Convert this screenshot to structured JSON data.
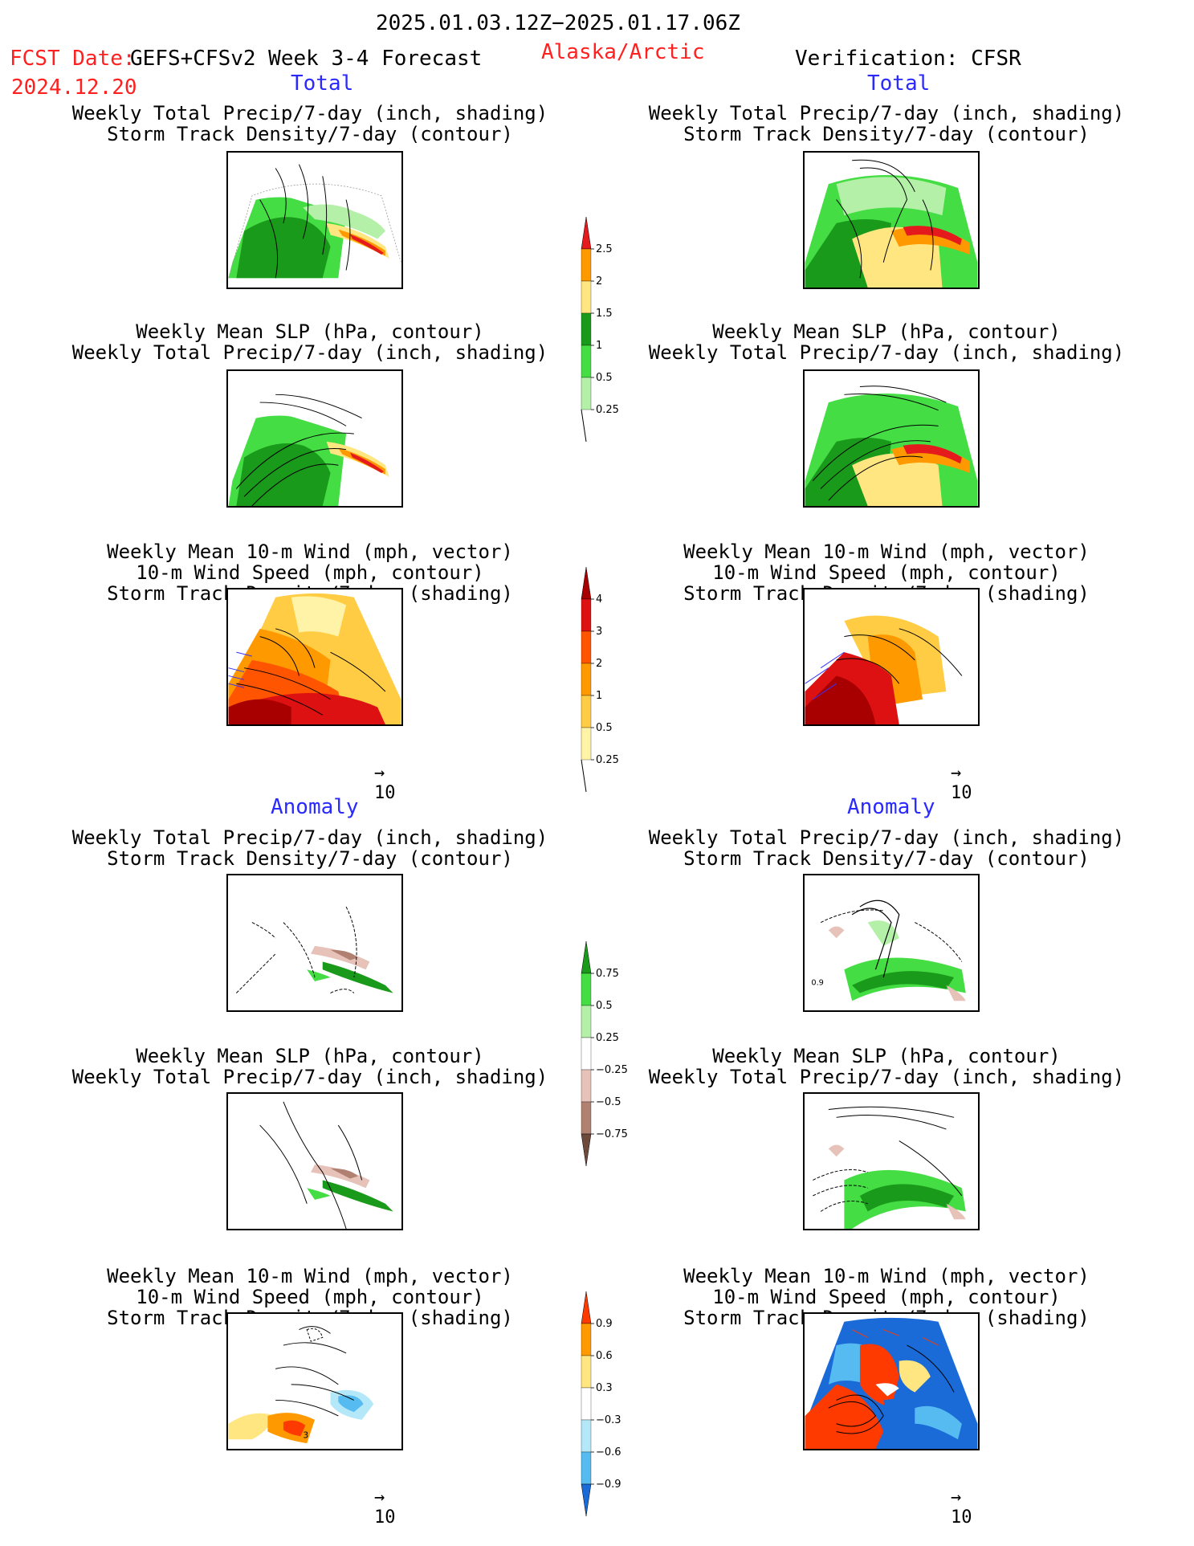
{
  "header": {
    "period": "2025.01.03.12Z−2025.01.17.06Z",
    "fcst_label": "FCST Date:",
    "fcst_date": "2024.12.20",
    "model": "GEFS+CFSv2 Week 3-4 Forecast",
    "region": "Alaska/Arctic",
    "verification": "Verification: CFSR"
  },
  "sections": {
    "total": "Total",
    "anomaly": "Anomaly"
  },
  "titles": {
    "precip_storm": [
      "Weekly Total Precip/7-day (inch, shading)",
      "Storm Track Density/7-day (contour)"
    ],
    "slp_precip": [
      "Weekly Mean SLP (hPa, contour)",
      "Weekly Total Precip/7-day (inch, shading)"
    ],
    "wind_storm": [
      "Weekly Mean 10-m Wind (mph, vector)",
      "10-m Wind Speed (mph, contour)",
      "Storm Track Density/7-day (shading)"
    ]
  },
  "vector_ref": "10",
  "map_labels": {
    "anom_storm_contour": "0.9",
    "anom_wind_contour": "3"
  },
  "colorbars": {
    "precip_total": {
      "ticks": [
        "2.5",
        "2",
        "1.5",
        "1",
        "0.5",
        "0.25"
      ],
      "colors": [
        "#e41a1c",
        "#ff9900",
        "#ffe680",
        "#1a9a1a",
        "#44dd44",
        "#b4f0a8"
      ]
    },
    "storm_total": {
      "ticks": [
        "4",
        "3",
        "2",
        "1",
        "0.5",
        "0.25"
      ],
      "colors": [
        "#a80000",
        "#dd1111",
        "#ff5500",
        "#ff9900",
        "#ffcc44",
        "#fff3a8"
      ]
    },
    "precip_anom": {
      "ticks": [
        "0.75",
        "0.5",
        "0.25",
        "−0.25",
        "−0.5",
        "−0.75"
      ],
      "colors": [
        "#1a9a1a",
        "#44dd44",
        "#b4f0a8",
        "#ffffff",
        "#e6c2b8",
        "#b08070",
        "#6e4a3c"
      ]
    },
    "storm_anom": {
      "ticks": [
        "0.9",
        "0.6",
        "0.3",
        "−0.3",
        "−0.6",
        "−0.9"
      ],
      "colors": [
        "#ff3a00",
        "#ff9900",
        "#ffe680",
        "#ffffff",
        "#b4e8f8",
        "#55bbf0",
        "#1a6ad8"
      ]
    }
  }
}
